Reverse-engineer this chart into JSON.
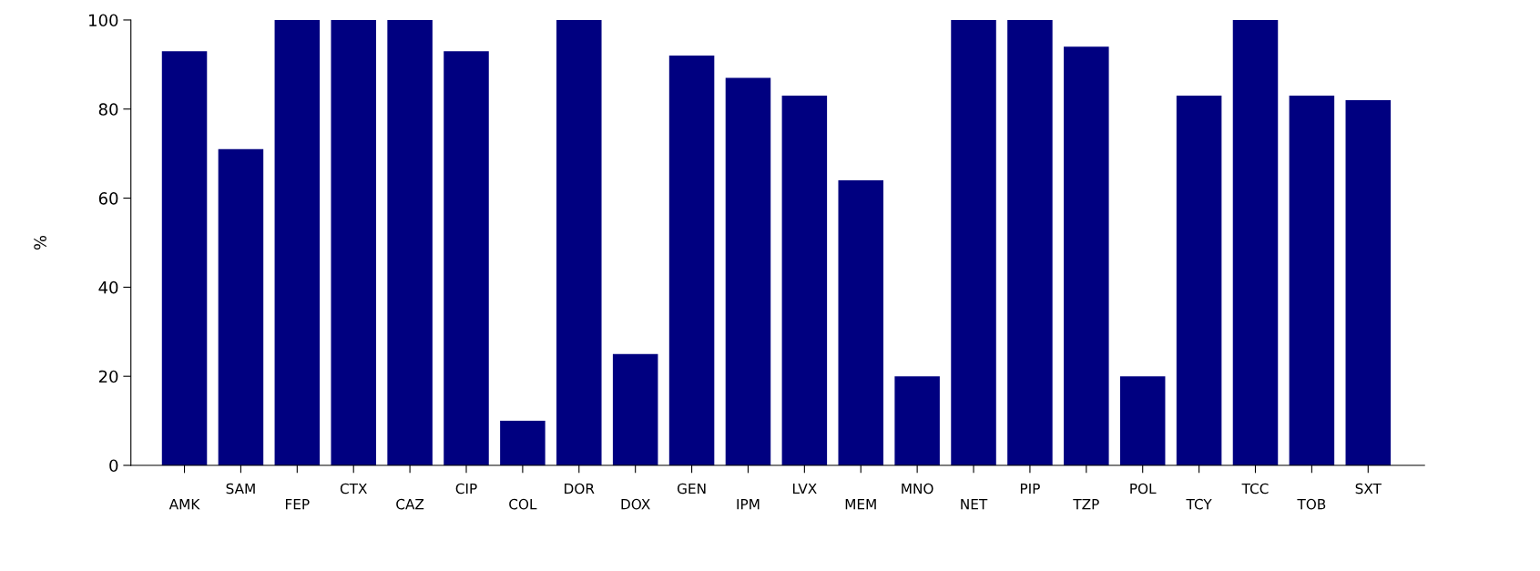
{
  "chart_data": {
    "type": "bar",
    "ylabel": "%",
    "categories": [
      "AMK",
      "SAM",
      "FEP",
      "CTX",
      "CAZ",
      "CIP",
      "COL",
      "DOR",
      "DOX",
      "GEN",
      "IPM",
      "LVX",
      "MEM",
      "MNO",
      "NET",
      "PIP",
      "TZP",
      "POL",
      "TCY",
      "TCC",
      "TOB",
      "SXT"
    ],
    "values": [
      93,
      71,
      100,
      100,
      100,
      93,
      10,
      100,
      25,
      92,
      87,
      83,
      64,
      20,
      100,
      100,
      94,
      20,
      83,
      100,
      83,
      82
    ],
    "color": "#000080",
    "ylim": [
      0,
      100
    ],
    "yticks": [
      0,
      20,
      40,
      60,
      80,
      100
    ],
    "grid": false,
    "legend": false
  }
}
